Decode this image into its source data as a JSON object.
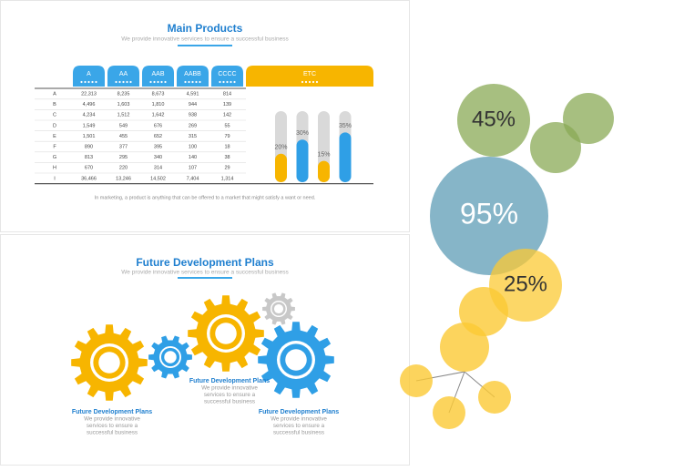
{
  "slide1": {
    "title": "Main Products",
    "subtitle": "We provide innovative services to  ensure a successful business",
    "columns": [
      "A",
      "AA",
      "AAB",
      "AABB",
      "CCCC",
      "ETC"
    ],
    "rows": [
      [
        "A",
        "22,313",
        "8,235",
        "8,673",
        "4,591",
        "814"
      ],
      [
        "B",
        "4,496",
        "1,603",
        "1,810",
        "944",
        "139"
      ],
      [
        "C",
        "4,234",
        "1,512",
        "1,642",
        "938",
        "142"
      ],
      [
        "D",
        "1,549",
        "549",
        "676",
        "269",
        "55"
      ],
      [
        "E",
        "1,501",
        "455",
        "652",
        "315",
        "79"
      ],
      [
        "F",
        "890",
        "377",
        "395",
        "100",
        "18"
      ],
      [
        "G",
        "813",
        "295",
        "340",
        "140",
        "38"
      ],
      [
        "H",
        "670",
        "220",
        "314",
        "107",
        "29"
      ],
      [
        "I",
        "36,466",
        "13,246",
        "14,502",
        "7,404",
        "1,314"
      ]
    ],
    "bars": [
      {
        "value": 20,
        "label": "20%"
      },
      {
        "value": 30,
        "label": "30%"
      },
      {
        "value": 15,
        "label": "15%"
      },
      {
        "value": 35,
        "label": "35%"
      }
    ],
    "footnote": "In marketing, a product is anything that can be offered to a market that might satisfy a want or need."
  },
  "slide2": {
    "title": "Future Development Plans",
    "subtitle": "We provide innovative services to  ensure a successful business",
    "captions": [
      {
        "title": "Future Development Plans",
        "lines": [
          "We provide innovative",
          "services to  ensure a",
          "successful business"
        ]
      },
      {
        "title": "Future Development Plans",
        "lines": [
          "We provide innovative",
          "services to  ensure a",
          "successful business"
        ]
      },
      {
        "title": "Future Development Plans",
        "lines": [
          "We provide innovative",
          "services to  ensure a",
          "successful business"
        ]
      }
    ]
  },
  "bubbles": [
    {
      "value": 45,
      "label": "45%"
    },
    {
      "value": 95,
      "label": "95%"
    },
    {
      "value": 25,
      "label": "25%"
    }
  ]
}
